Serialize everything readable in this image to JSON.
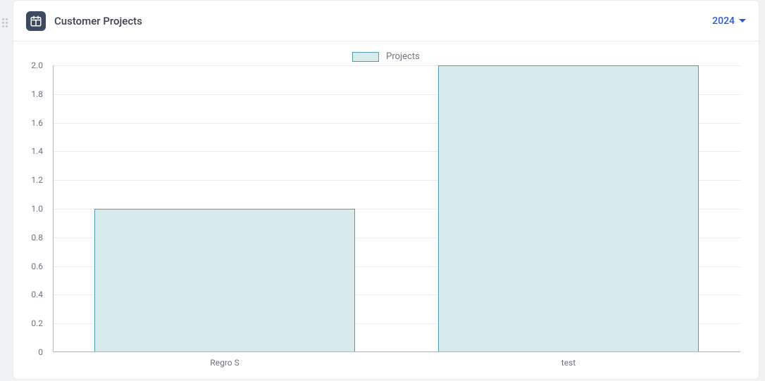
{
  "header": {
    "title": "Customer Projects",
    "icon_bg": "#3b4a60",
    "icon_fg": "#ffffff",
    "year_label": "2024",
    "year_color": "#2457e6"
  },
  "chart": {
    "type": "bar",
    "legend_label": "Projects",
    "legend_text_color": "#6b7280",
    "categories": [
      "Regro S",
      "test"
    ],
    "values": [
      1.0,
      2.0
    ],
    "bar_fill": "#d7ecea",
    "bar_border": "#4e9db0",
    "bar_width_ratio": 0.76,
    "ylim": [
      0,
      2.0
    ],
    "ytick_step": 0.2,
    "ytick_decimals": 1,
    "grid_color": "#e9ecef",
    "axis_color": "#adb5bd",
    "axis_label_color": "#6b7280",
    "axis_label_fontsize": 12,
    "background_color": "#ffffff"
  },
  "card": {
    "bg": "#ffffff",
    "border": "#e7eaee"
  },
  "page_bg": "#f1f2f4"
}
